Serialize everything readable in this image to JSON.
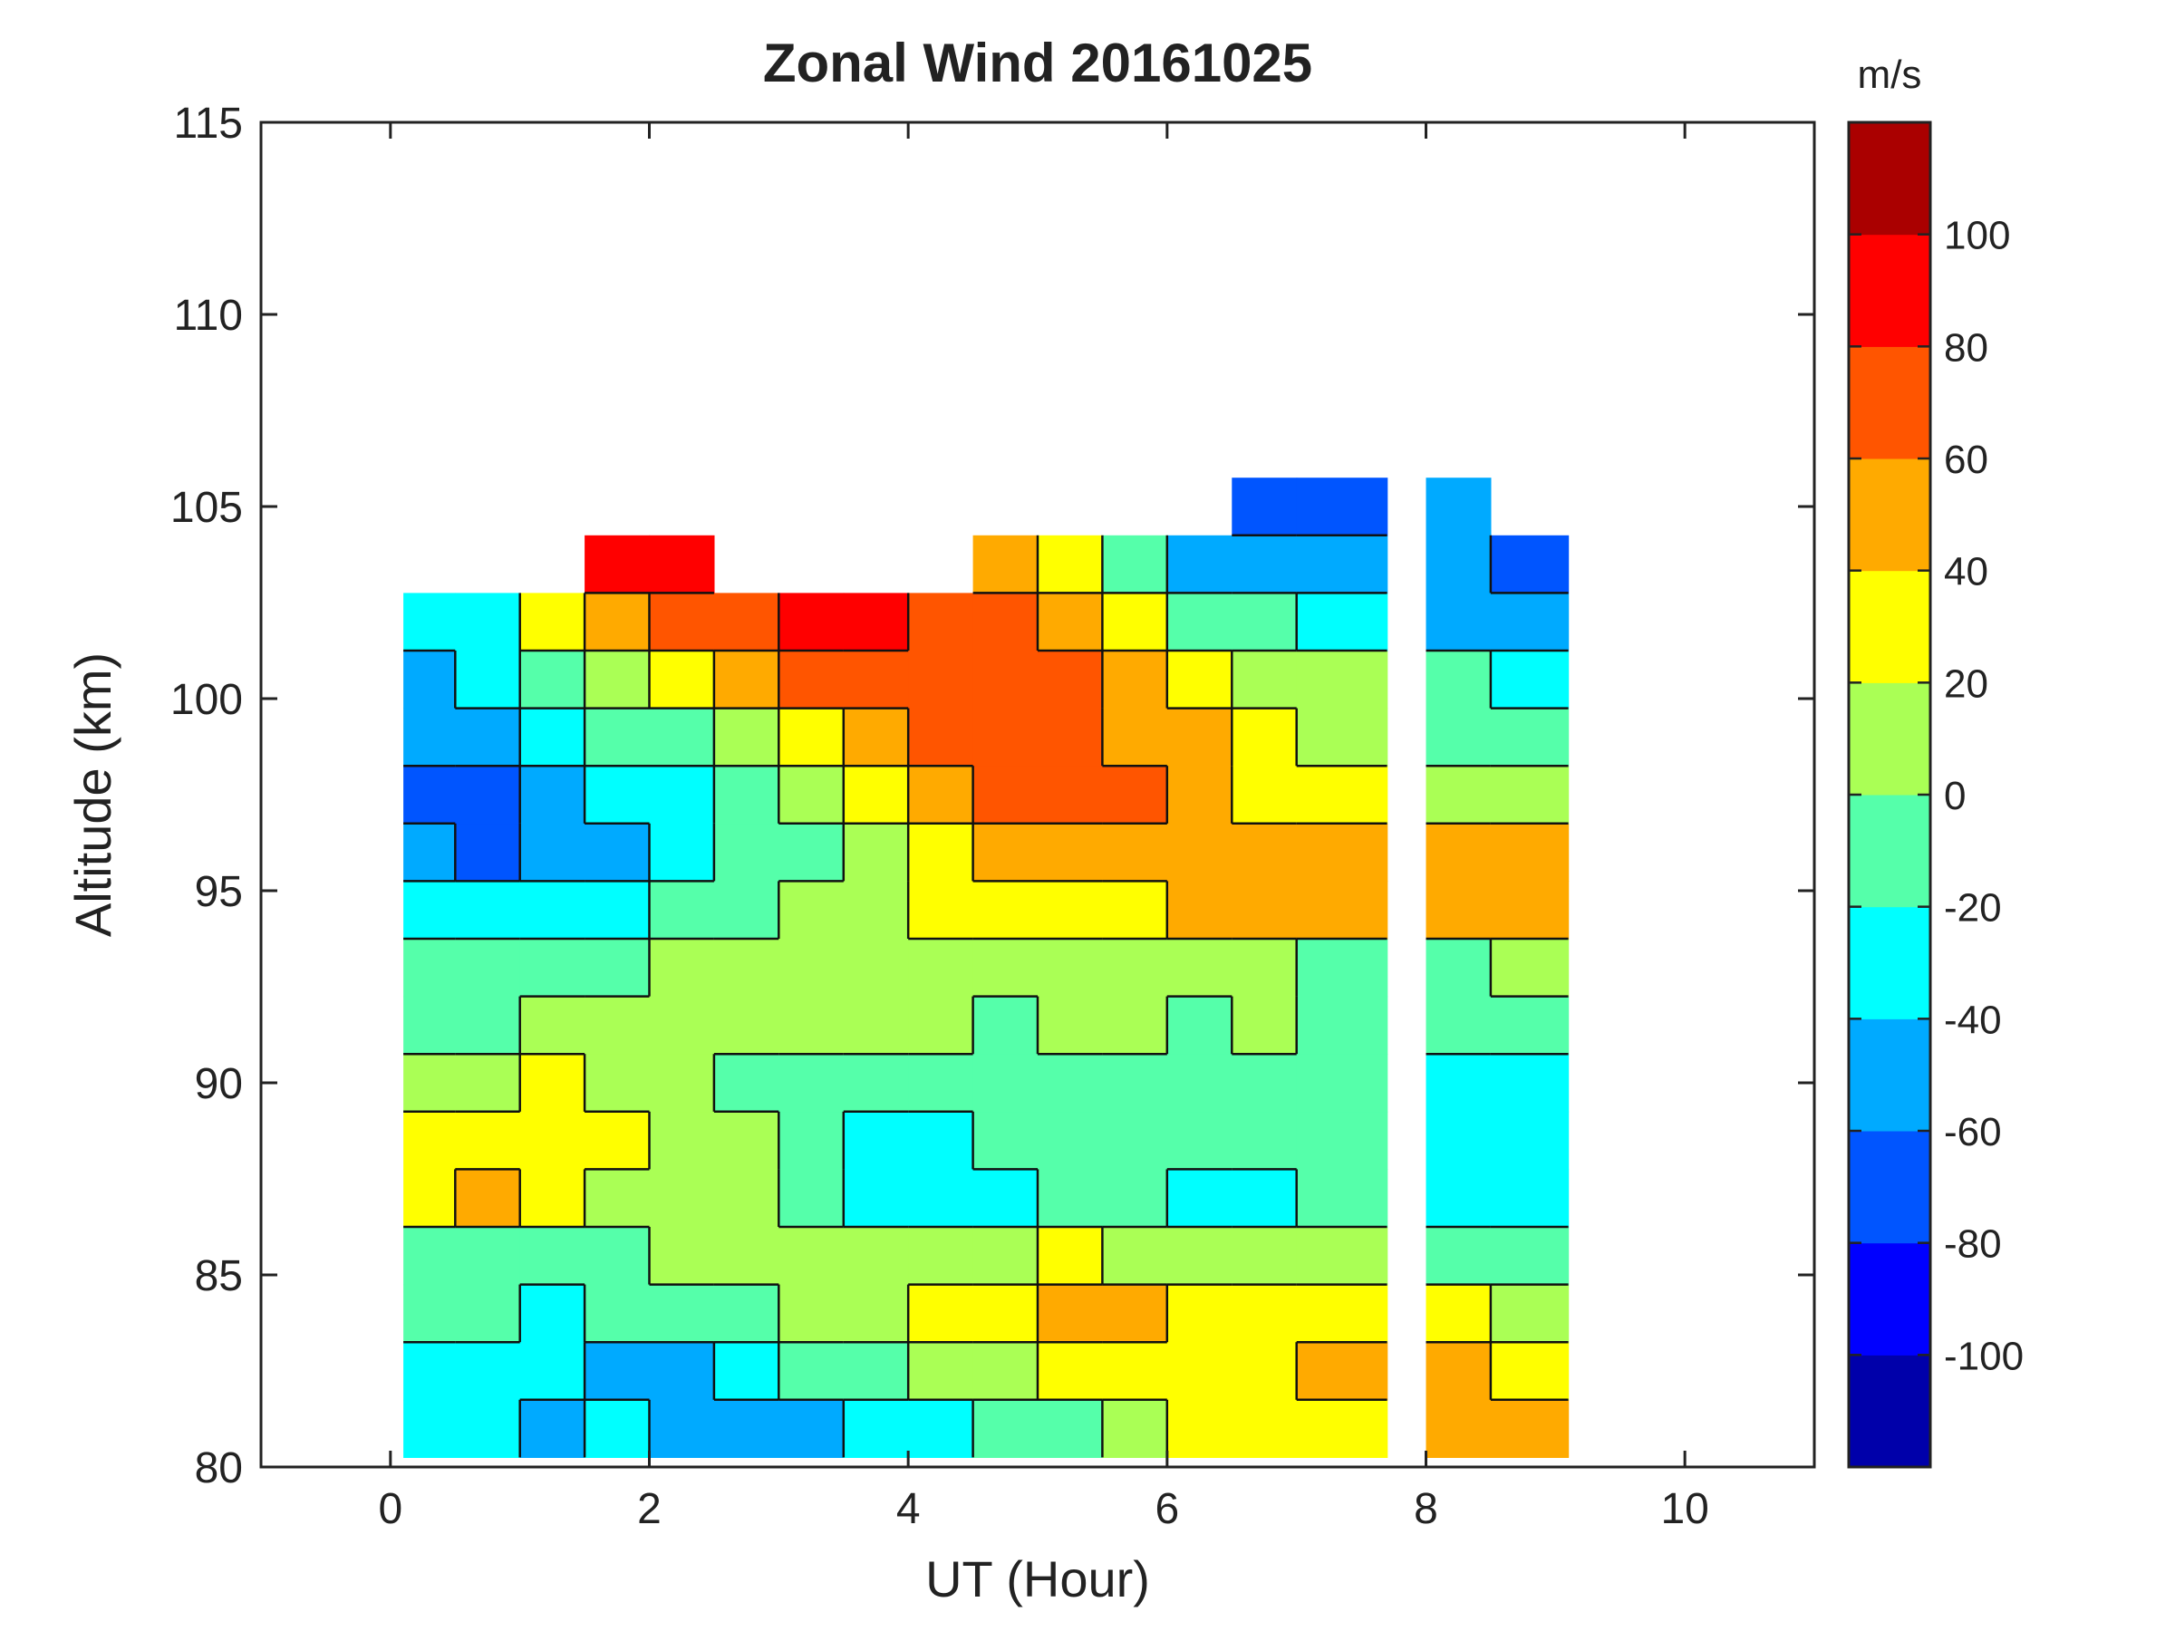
{
  "chart_data": {
    "type": "heatmap",
    "subtype": "filled-contour",
    "title": "Zonal Wind 20161025",
    "xlabel": "UT (Hour)",
    "ylabel": "Altitude (km)",
    "xlim": [
      -1,
      11
    ],
    "ylim": [
      80,
      115
    ],
    "xticks": [
      0,
      2,
      4,
      6,
      8,
      10
    ],
    "yticks": [
      80,
      85,
      90,
      95,
      100,
      105,
      110,
      115
    ],
    "colorbar": {
      "unit": "m/s",
      "limits": [
        -120,
        120
      ],
      "ticks": [
        100,
        80,
        60,
        40,
        20,
        0,
        -20,
        -40,
        -60,
        -80,
        -100
      ],
      "levels": [
        -120,
        -100,
        -80,
        -60,
        -40,
        -20,
        0,
        20,
        40,
        60,
        80,
        100,
        120
      ],
      "colors": [
        "#0000aa",
        "#0000ff",
        "#0055ff",
        "#00aaff",
        "#00ffff",
        "#55ffaa",
        "#aaff55",
        "#ffff00",
        "#ffaa00",
        "#ff5500",
        "#ff0000",
        "#aa0000"
      ]
    },
    "data_segments": [
      {
        "ut_start": 0.1,
        "ut_end": 7.7
      },
      {
        "ut_start": 8.0,
        "ut_end": 9.1
      }
    ],
    "altitudes_km": [
      81,
      82.5,
      84,
      85.5,
      87,
      88.5,
      90,
      91.5,
      93,
      94.5,
      96,
      97.5,
      99,
      100.5,
      102,
      103.5,
      105
    ],
    "ut_hours": [
      0.25,
      0.75,
      1.25,
      1.75,
      2.25,
      2.75,
      3.25,
      3.75,
      4.25,
      4.75,
      5.25,
      5.75,
      6.25,
      6.75,
      7.25,
      8.25,
      8.75
    ],
    "wind_ms": [
      [
        -30,
        -35,
        -45,
        -40,
        -55,
        -50,
        -45,
        -35,
        -25,
        -20,
        -10,
        5,
        20,
        30,
        25,
        50,
        45
      ],
      [
        -25,
        -30,
        -40,
        -50,
        -45,
        -30,
        -20,
        -10,
        0,
        10,
        25,
        35,
        30,
        35,
        40,
        45,
        30
      ],
      [
        -15,
        -20,
        -25,
        -20,
        -15,
        -5,
        5,
        15,
        25,
        35,
        45,
        40,
        35,
        30,
        30,
        20,
        10
      ],
      [
        -5,
        -10,
        -5,
        -5,
        0,
        5,
        10,
        15,
        10,
        15,
        20,
        15,
        10,
        5,
        0,
        -10,
        -15
      ],
      [
        25,
        40,
        30,
        15,
        5,
        0,
        -10,
        -25,
        -40,
        -30,
        -15,
        -20,
        -30,
        -25,
        -15,
        -30,
        -35
      ],
      [
        30,
        35,
        35,
        20,
        10,
        0,
        -15,
        -30,
        -40,
        -20,
        -10,
        -15,
        -20,
        -15,
        -10,
        -35,
        -30
      ],
      [
        10,
        15,
        20,
        15,
        5,
        -5,
        -15,
        -20,
        -15,
        -10,
        -10,
        -5,
        -10,
        -5,
        -10,
        -30,
        -25
      ],
      [
        -10,
        -5,
        0,
        5,
        10,
        5,
        0,
        5,
        0,
        -5,
        0,
        5,
        -5,
        0,
        -10,
        -20,
        -15
      ],
      [
        -20,
        -15,
        -10,
        -5,
        0,
        5,
        10,
        15,
        10,
        5,
        5,
        0,
        5,
        0,
        -5,
        -5,
        0
      ],
      [
        -25,
        -30,
        -35,
        -30,
        -20,
        -10,
        0,
        10,
        20,
        25,
        30,
        35,
        40,
        45,
        45,
        55,
        50
      ],
      [
        -60,
        -65,
        -55,
        -45,
        -35,
        -20,
        -10,
        15,
        30,
        45,
        50,
        55,
        55,
        50,
        45,
        45,
        40
      ],
      [
        -75,
        -70,
        -55,
        -40,
        -30,
        -15,
        0,
        30,
        50,
        60,
        65,
        60,
        45,
        35,
        25,
        15,
        10
      ],
      [
        -60,
        -50,
        -35,
        -20,
        -5,
        15,
        30,
        55,
        70,
        75,
        70,
        55,
        40,
        20,
        10,
        -5,
        -10
      ],
      [
        -50,
        -40,
        -20,
        10,
        30,
        50,
        60,
        70,
        75,
        75,
        60,
        45,
        30,
        15,
        0,
        -15,
        -25
      ],
      [
        -35,
        -25,
        20,
        40,
        60,
        75,
        85,
        80,
        75,
        70,
        50,
        20,
        -5,
        -20,
        -30,
        -45,
        -55
      ],
      [
        null,
        null,
        null,
        85,
        80,
        null,
        null,
        null,
        null,
        45,
        20,
        -20,
        -50,
        -55,
        -60,
        -60,
        -70
      ],
      [
        null,
        null,
        null,
        null,
        null,
        null,
        null,
        null,
        null,
        null,
        null,
        null,
        null,
        -65,
        -65,
        -60,
        null
      ]
    ]
  }
}
